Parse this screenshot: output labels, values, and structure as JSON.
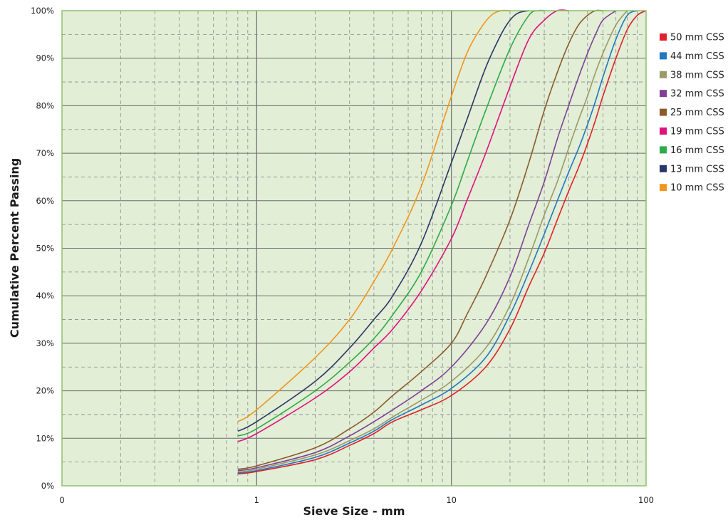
{
  "chart_data": {
    "type": "line",
    "title": "",
    "xlabel": "Sieve Size - mm",
    "ylabel": "Cumulative Percent Passing",
    "x_scale": "log",
    "xlim": [
      0.1,
      100
    ],
    "ylim": [
      0,
      100
    ],
    "x_tick_labels": [
      "0",
      "1",
      "10",
      "100"
    ],
    "y_tick_labels": [
      "0%",
      "10%",
      "20%",
      "30%",
      "40%",
      "50%",
      "60%",
      "70%",
      "80%",
      "90%",
      "100%"
    ],
    "grid": true,
    "plot_background": "#e2eed6",
    "legend_position": "right",
    "series": [
      {
        "name": "50 mm CSS",
        "color": "#e0202a",
        "x": [
          0.8,
          1,
          2,
          3,
          4,
          5,
          7,
          10,
          15,
          20,
          25,
          30,
          35,
          40,
          45,
          50,
          55,
          60,
          70,
          80,
          90,
          100
        ],
        "y": [
          2.5,
          3,
          5.5,
          8.5,
          11,
          13.5,
          16,
          19,
          25,
          33,
          42,
          49,
          56,
          62,
          67,
          72,
          77,
          82,
          90,
          96,
          99,
          100
        ]
      },
      {
        "name": "44 mm CSS",
        "color": "#1f78c1",
        "x": [
          0.8,
          1,
          2,
          3,
          4,
          5,
          7,
          10,
          15,
          20,
          25,
          30,
          35,
          40,
          45,
          50,
          55,
          60,
          70,
          80,
          90
        ],
        "y": [
          2.7,
          3.2,
          6,
          9,
          11.5,
          14,
          17,
          20.5,
          27,
          36,
          45,
          53,
          60,
          66,
          71,
          76,
          81,
          86,
          94,
          99,
          100
        ]
      },
      {
        "name": "38 mm CSS",
        "color": "#9a9a66",
        "x": [
          0.8,
          1,
          2,
          3,
          4,
          5,
          7,
          10,
          15,
          20,
          25,
          30,
          35,
          40,
          45,
          50,
          55,
          60,
          70,
          80
        ],
        "y": [
          2.9,
          3.5,
          6.5,
          9.5,
          12,
          14.5,
          18,
          22,
          29,
          38,
          48,
          57,
          64,
          71,
          77,
          82,
          87,
          91,
          97,
          100
        ]
      },
      {
        "name": "32 mm CSS",
        "color": "#7f3f98",
        "x": [
          0.8,
          1,
          2,
          3,
          4,
          5,
          7,
          10,
          15,
          20,
          25,
          30,
          35,
          40,
          45,
          50,
          55,
          60,
          70
        ],
        "y": [
          3.2,
          3.8,
          7,
          10.5,
          13.5,
          16,
          20,
          25,
          34,
          44,
          55,
          64,
          73,
          80,
          86,
          91,
          95,
          98,
          100
        ]
      },
      {
        "name": "25 mm CSS",
        "color": "#8b5a2b",
        "x": [
          0.8,
          1,
          2,
          3,
          4,
          5,
          7,
          10,
          12,
          15,
          20,
          25,
          30,
          35,
          40,
          45,
          50,
          55,
          60
        ],
        "y": [
          3.5,
          4.2,
          8,
          12,
          15.5,
          19,
          24,
          30,
          36,
          44,
          56,
          68,
          79,
          87,
          93,
          97,
          99,
          100,
          100
        ]
      },
      {
        "name": "19 mm CSS",
        "color": "#e0117f",
        "x": [
          0.8,
          1,
          2,
          3,
          4,
          5,
          7,
          10,
          12,
          15,
          20,
          25,
          30,
          35,
          40
        ],
        "y": [
          9.3,
          11,
          18.5,
          24,
          29,
          33,
          41,
          52,
          60,
          70,
          84,
          94,
          98,
          100,
          100
        ]
      },
      {
        "name": "16 mm CSS",
        "color": "#2eaa48",
        "x": [
          0.8,
          1,
          2,
          3,
          4,
          5,
          7,
          10,
          12,
          15,
          20,
          25,
          28,
          30
        ],
        "y": [
          10.5,
          12,
          20,
          26,
          31,
          36,
          45,
          59,
          68,
          79,
          92,
          99,
          100,
          100
        ]
      },
      {
        "name": "13 mm CSS",
        "color": "#2b3668",
        "x": [
          0.8,
          1,
          2,
          3,
          4,
          5,
          7,
          10,
          12,
          15,
          18,
          20,
          22,
          25
        ],
        "y": [
          11.5,
          13.5,
          22,
          29,
          35,
          40,
          51,
          68,
          77,
          88,
          95,
          98,
          99.5,
          100
        ]
      },
      {
        "name": "10 mm CSS",
        "color": "#f0961e",
        "x": [
          0.8,
          1,
          2,
          3,
          4,
          5,
          7,
          10,
          12,
          14,
          16,
          18,
          20
        ],
        "y": [
          13.5,
          16,
          27,
          35,
          43,
          50,
          63,
          82,
          91,
          96,
          99,
          100,
          100
        ]
      }
    ]
  }
}
